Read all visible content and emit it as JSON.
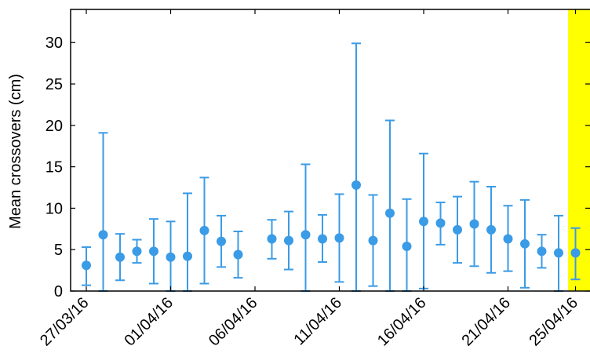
{
  "chart_data": {
    "type": "scatter",
    "ylabel": "Mean crossovers (cm)",
    "xlabel": "",
    "ylim": [
      0,
      34
    ],
    "xlim": [
      "2016-03-26",
      "2016-04-25"
    ],
    "yticks": [
      0,
      5,
      10,
      15,
      20,
      25,
      30
    ],
    "xticks": [
      {
        "date": "2016-03-27",
        "label": "27/03/16"
      },
      {
        "date": "2016-04-01",
        "label": "01/04/16"
      },
      {
        "date": "2016-04-06",
        "label": "06/04/16"
      },
      {
        "date": "2016-04-11",
        "label": "11/04/16"
      },
      {
        "date": "2016-04-16",
        "label": "16/04/16"
      },
      {
        "date": "2016-04-21",
        "label": "21/04/16"
      },
      {
        "date": "2016-04-25",
        "label": "25/04/16"
      }
    ],
    "series": [
      {
        "color": "#3a9be6",
        "error_bars": true,
        "points": [
          {
            "x": "2016-03-27",
            "y": 3.1,
            "low": 0.7,
            "high": 5.3
          },
          {
            "x": "2016-03-28",
            "y": 6.8,
            "low": 0.0,
            "high": 19.1
          },
          {
            "x": "2016-03-29",
            "y": 4.1,
            "low": 1.3,
            "high": 6.9
          },
          {
            "x": "2016-03-30",
            "y": 4.8,
            "low": 3.4,
            "high": 6.2
          },
          {
            "x": "2016-03-31",
            "y": 4.8,
            "low": 0.9,
            "high": 8.7
          },
          {
            "x": "2016-04-01",
            "y": 4.1,
            "low": 0.0,
            "high": 8.4
          },
          {
            "x": "2016-04-02",
            "y": 4.2,
            "low": 0.0,
            "high": 11.8
          },
          {
            "x": "2016-04-03",
            "y": 7.3,
            "low": 0.9,
            "high": 13.7
          },
          {
            "x": "2016-04-04",
            "y": 6.0,
            "low": 2.9,
            "high": 9.1
          },
          {
            "x": "2016-04-05",
            "y": 4.4,
            "low": 1.6,
            "high": 7.2
          },
          {
            "x": "2016-04-07",
            "y": 6.3,
            "low": 3.9,
            "high": 8.6
          },
          {
            "x": "2016-04-08",
            "y": 6.1,
            "low": 2.6,
            "high": 9.6
          },
          {
            "x": "2016-04-09",
            "y": 6.8,
            "low": 0.0,
            "high": 15.3
          },
          {
            "x": "2016-04-10",
            "y": 6.3,
            "low": 3.5,
            "high": 9.2
          },
          {
            "x": "2016-04-11",
            "y": 6.4,
            "low": 1.1,
            "high": 11.7
          },
          {
            "x": "2016-04-12",
            "y": 12.8,
            "low": 0.0,
            "high": 29.9
          },
          {
            "x": "2016-04-13",
            "y": 6.1,
            "low": 0.6,
            "high": 11.6
          },
          {
            "x": "2016-04-14",
            "y": 9.4,
            "low": 0.0,
            "high": 20.6
          },
          {
            "x": "2016-04-15",
            "y": 5.4,
            "low": 0.0,
            "high": 11.1
          },
          {
            "x": "2016-04-16",
            "y": 8.4,
            "low": 0.3,
            "high": 16.6
          },
          {
            "x": "2016-04-17",
            "y": 8.2,
            "low": 5.6,
            "high": 10.7
          },
          {
            "x": "2016-04-18",
            "y": 7.4,
            "low": 3.4,
            "high": 11.4
          },
          {
            "x": "2016-04-19",
            "y": 8.1,
            "low": 3.0,
            "high": 13.2
          },
          {
            "x": "2016-04-20",
            "y": 7.4,
            "low": 2.2,
            "high": 12.6
          },
          {
            "x": "2016-04-21",
            "y": 6.3,
            "low": 2.4,
            "high": 10.3
          },
          {
            "x": "2016-04-22",
            "y": 5.7,
            "low": 0.4,
            "high": 11.0
          },
          {
            "x": "2016-04-23",
            "y": 4.8,
            "low": 2.8,
            "high": 6.8
          },
          {
            "x": "2016-04-24",
            "y": 4.6,
            "low": 0.0,
            "high": 9.1
          },
          {
            "x": "2016-04-25",
            "y": 4.6,
            "low": 1.4,
            "high": 7.6
          }
        ]
      }
    ],
    "highlight": {
      "from": "2016-04-24",
      "to": "2016-04-25",
      "color": "#ffff00"
    },
    "grid": false,
    "legend": "none"
  }
}
